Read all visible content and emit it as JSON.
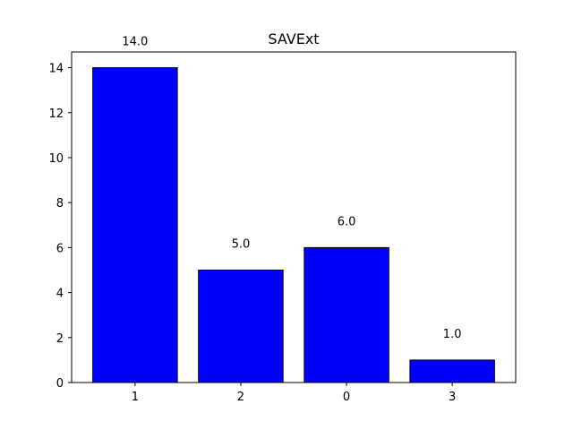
{
  "chart_data": {
    "type": "bar",
    "title": "SAVExt",
    "xlabel": "",
    "ylabel": "",
    "categories": [
      "1",
      "2",
      "0",
      "3"
    ],
    "values": [
      14.0,
      5.0,
      6.0,
      1.0
    ],
    "value_labels": [
      "14.0",
      "5.0",
      "6.0",
      "1.0"
    ],
    "ylim": [
      0,
      14.7
    ],
    "yticks": [
      0,
      2,
      4,
      6,
      8,
      10,
      12,
      14
    ],
    "ytick_labels": [
      "0",
      "2",
      "4",
      "6",
      "8",
      "10",
      "12",
      "14"
    ],
    "grid": false,
    "bar_color": "#0000ff",
    "bar_edge_color": "#000000"
  }
}
